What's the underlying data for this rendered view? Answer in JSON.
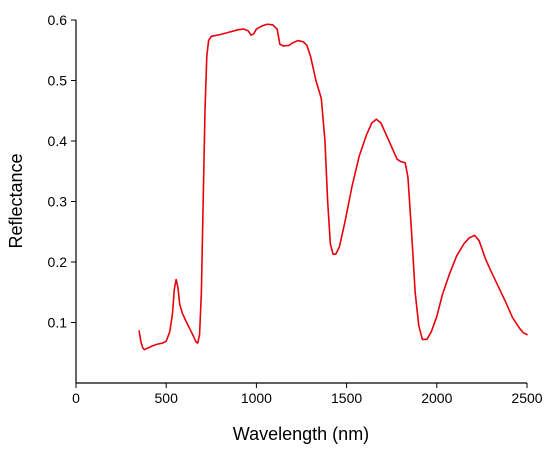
{
  "chart_data": {
    "type": "line",
    "title": "",
    "xlabel": "Wavelength (nm)",
    "ylabel": "Reflectance",
    "xlim": [
      0,
      2500
    ],
    "ylim": [
      0,
      0.6
    ],
    "xticks": [
      "0",
      "500",
      "1000",
      "1500",
      "2000",
      "2500"
    ],
    "yticks": [
      "0.1",
      "0.2",
      "0.3",
      "0.4",
      "0.5",
      "0.6"
    ],
    "grid": false,
    "legend": "none",
    "series": [
      {
        "color": "#e8000b",
        "points": [
          [
            350,
            0.086
          ],
          [
            360,
            0.068
          ],
          [
            370,
            0.058
          ],
          [
            380,
            0.055
          ],
          [
            390,
            0.057
          ],
          [
            400,
            0.058
          ],
          [
            420,
            0.061
          ],
          [
            450,
            0.064
          ],
          [
            480,
            0.066
          ],
          [
            500,
            0.069
          ],
          [
            520,
            0.085
          ],
          [
            535,
            0.115
          ],
          [
            545,
            0.155
          ],
          [
            555,
            0.171
          ],
          [
            565,
            0.158
          ],
          [
            575,
            0.13
          ],
          [
            590,
            0.115
          ],
          [
            610,
            0.102
          ],
          [
            630,
            0.09
          ],
          [
            650,
            0.078
          ],
          [
            665,
            0.068
          ],
          [
            675,
            0.066
          ],
          [
            685,
            0.08
          ],
          [
            695,
            0.15
          ],
          [
            705,
            0.3
          ],
          [
            715,
            0.45
          ],
          [
            725,
            0.54
          ],
          [
            735,
            0.566
          ],
          [
            750,
            0.573
          ],
          [
            800,
            0.576
          ],
          [
            850,
            0.58
          ],
          [
            900,
            0.584
          ],
          [
            930,
            0.585
          ],
          [
            955,
            0.582
          ],
          [
            970,
            0.575
          ],
          [
            985,
            0.577
          ],
          [
            1000,
            0.585
          ],
          [
            1030,
            0.59
          ],
          [
            1060,
            0.593
          ],
          [
            1090,
            0.592
          ],
          [
            1115,
            0.585
          ],
          [
            1130,
            0.56
          ],
          [
            1150,
            0.557
          ],
          [
            1180,
            0.558
          ],
          [
            1200,
            0.562
          ],
          [
            1230,
            0.566
          ],
          [
            1260,
            0.564
          ],
          [
            1280,
            0.558
          ],
          [
            1300,
            0.54
          ],
          [
            1330,
            0.5
          ],
          [
            1360,
            0.47
          ],
          [
            1380,
            0.4
          ],
          [
            1395,
            0.3
          ],
          [
            1410,
            0.23
          ],
          [
            1425,
            0.213
          ],
          [
            1440,
            0.213
          ],
          [
            1460,
            0.225
          ],
          [
            1490,
            0.265
          ],
          [
            1530,
            0.325
          ],
          [
            1570,
            0.375
          ],
          [
            1610,
            0.41
          ],
          [
            1640,
            0.43
          ],
          [
            1665,
            0.436
          ],
          [
            1690,
            0.43
          ],
          [
            1720,
            0.41
          ],
          [
            1750,
            0.39
          ],
          [
            1780,
            0.37
          ],
          [
            1800,
            0.366
          ],
          [
            1825,
            0.364
          ],
          [
            1840,
            0.34
          ],
          [
            1860,
            0.25
          ],
          [
            1880,
            0.15
          ],
          [
            1900,
            0.095
          ],
          [
            1920,
            0.072
          ],
          [
            1945,
            0.072
          ],
          [
            1970,
            0.085
          ],
          [
            2000,
            0.11
          ],
          [
            2030,
            0.145
          ],
          [
            2070,
            0.18
          ],
          [
            2110,
            0.21
          ],
          [
            2150,
            0.23
          ],
          [
            2180,
            0.24
          ],
          [
            2210,
            0.244
          ],
          [
            2235,
            0.235
          ],
          [
            2270,
            0.205
          ],
          [
            2300,
            0.185
          ],
          [
            2340,
            0.16
          ],
          [
            2380,
            0.135
          ],
          [
            2420,
            0.108
          ],
          [
            2460,
            0.09
          ],
          [
            2480,
            0.083
          ],
          [
            2500,
            0.08
          ]
        ]
      }
    ]
  }
}
